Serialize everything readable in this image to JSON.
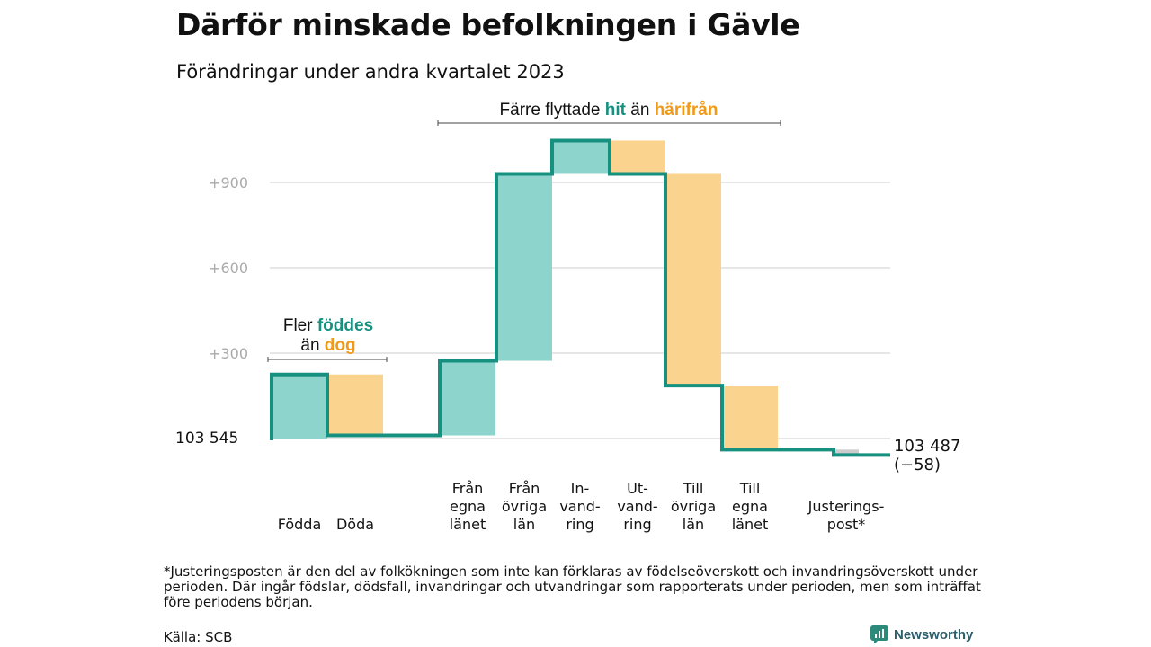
{
  "title": "Därför minskade befolkningen i Gävle",
  "subtitle": "Förändringar under andra kvartalet 2023",
  "annotations": {
    "births_deaths": {
      "line1_a": "Fler ",
      "line1_b": "föddes",
      "line2_a": "än ",
      "line2_b": "dog"
    },
    "migration": {
      "a": "Färre flyttade ",
      "b": "hit",
      "c": " än ",
      "d": "härifrån"
    }
  },
  "start_label": "103   545",
  "end_label": {
    "value": "103 487",
    "change": "(−58)"
  },
  "colors": {
    "increase": "#8dd5cc",
    "decrease": "#fad48e",
    "adjust": "#cccccc",
    "line": "#16907f"
  },
  "chart_data": {
    "type": "bar",
    "start_value": 103545,
    "end_value": 103487,
    "yticks": [
      "+300",
      "+600",
      "+900"
    ],
    "ytick_values": [
      300,
      600,
      900
    ],
    "ylim": [
      -120,
      1120
    ],
    "steps": [
      {
        "label": [
          "Födda"
        ],
        "kind": "increase",
        "delta": 225
      },
      {
        "label": [
          "Döda"
        ],
        "kind": "decrease",
        "delta": -214
      },
      {
        "label": [
          "Från",
          "egna",
          "länet"
        ],
        "kind": "increase",
        "delta": 262
      },
      {
        "label": [
          "Från",
          "övriga",
          "län"
        ],
        "kind": "increase",
        "delta": 657
      },
      {
        "label": [
          "In-",
          "vand-",
          "ring"
        ],
        "kind": "increase",
        "delta": 117
      },
      {
        "label": [
          "Ut-",
          "vand-",
          "ring"
        ],
        "kind": "decrease",
        "delta": -117
      },
      {
        "label": [
          "Till",
          "övriga",
          "län"
        ],
        "kind": "decrease",
        "delta": -744
      },
      {
        "label": [
          "Till",
          "egna",
          "länet"
        ],
        "kind": "decrease",
        "delta": -225
      },
      {
        "label": [
          "Justerings-",
          "post*"
        ],
        "kind": "adjust",
        "delta": -19
      }
    ]
  },
  "footnote": "*Justeringsposten är den del av folkökningen som inte kan förklaras av födelseöverskott och invandringsöverskott under perioden. Där ingår födslar, dödsfall, invandringar och utvandringar som rapporterats under perioden, men som inträffat före periodens början.",
  "source": "Källa: SCB",
  "brand": "Newsworthy"
}
